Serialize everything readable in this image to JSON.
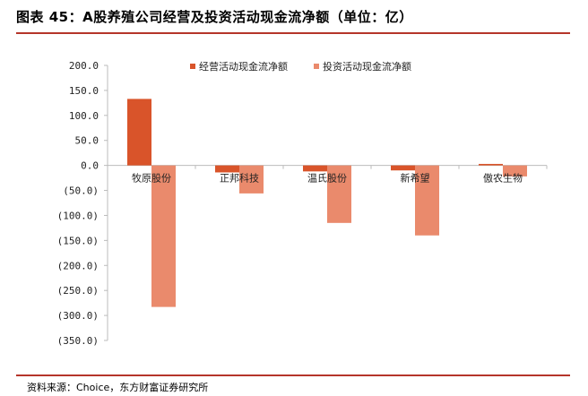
{
  "header": {
    "title": "图表 45：A股养殖公司经营及投资活动现金流净额（单位：亿）"
  },
  "footer": {
    "source": "资料来源：Choice，东方财富证券研究所"
  },
  "colors": {
    "rule": "#b5352a",
    "series_operating": "#d9542a",
    "series_investing": "#ea8a6c",
    "axis": "#bbbbbb"
  },
  "chart_data": {
    "type": "bar",
    "title": "",
    "xlabel": "",
    "ylabel": "",
    "ylim": [
      -350,
      200
    ],
    "yticks": [
      200,
      150,
      100,
      50,
      0,
      -50,
      -100,
      -150,
      -200,
      -250,
      -300,
      -350
    ],
    "ytick_labels": [
      "200.0",
      "150.0",
      "100.0",
      "50.0",
      "0.0",
      "(50.0)",
      "(100.0)",
      "(150.0)",
      "(200.0)",
      "(250.0)",
      "(300.0)",
      "(350.0)"
    ],
    "categories": [
      "牧原股份",
      "正邦科技",
      "温氏股份",
      "新希望",
      "傲农生物"
    ],
    "series": [
      {
        "name": "经营活动现金流净额",
        "values": [
          133,
          -14,
          -12,
          -10,
          3
        ]
      },
      {
        "name": "投资活动现金流净额",
        "values": [
          -283,
          -56,
          -115,
          -140,
          -22
        ]
      }
    ],
    "legend_position": "top-center",
    "grid": false
  }
}
